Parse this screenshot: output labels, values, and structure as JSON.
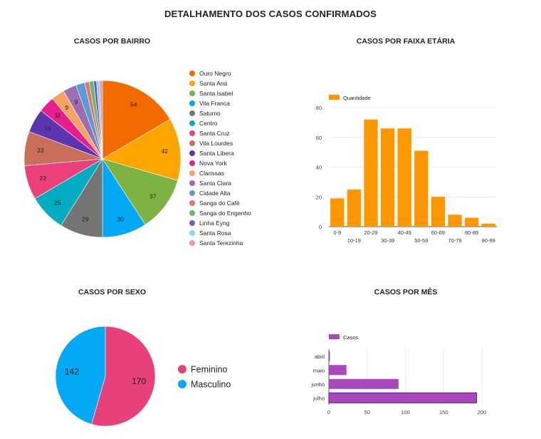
{
  "page": {
    "title": "DETALHAMENTO DOS CASOS CONFIRMADOS"
  },
  "chart_data": [
    {
      "type": "pie",
      "title": "CASOS POR BAIRRO",
      "categories": [
        "Ouro Negro",
        "Santa Ana",
        "Santa Isabel",
        "Vila Franca",
        "Saturno",
        "Centro",
        "Santa Cruz",
        "Vila Lourdes",
        "Santa Líbera",
        "Nova York",
        "Clarissas",
        "Santa Clara",
        "Cidade Alta",
        "Sanga do Café",
        "Sanga do Engenho",
        "Linha Eyng",
        "Santa Rosa",
        "Santa Terezinha"
      ],
      "values": [
        54,
        42,
        37,
        30,
        29,
        25,
        23,
        23,
        16,
        11,
        9,
        9,
        6,
        3,
        3,
        2,
        2,
        2
      ],
      "colors": [
        "#f26b00",
        "#ffa500",
        "#7cb342",
        "#03a9f4",
        "#757575",
        "#00acc1",
        "#ec407a",
        "#c96e5a",
        "#5e35b1",
        "#e91e8c",
        "#f4a460",
        "#9c6db1",
        "#5b9bd5",
        "#e57373",
        "#66bb6a",
        "#7e57c2",
        "#81d4fa",
        "#f48fb1"
      ],
      "legend": "right"
    },
    {
      "type": "bar",
      "title": "CASOS POR FAIXA ETÁRIA",
      "categories": [
        "0-9",
        "10-19",
        "20-29",
        "30-39",
        "40-49",
        "50-59",
        "60-69",
        "70-79",
        "80-89",
        "90-99"
      ],
      "series": [
        {
          "name": "Quantidade",
          "values": [
            19,
            25,
            72,
            66,
            66,
            51,
            20,
            8,
            6,
            2
          ],
          "color": "#ff9800"
        }
      ],
      "ylim": [
        0,
        80
      ],
      "yticks": [
        0,
        20,
        40,
        60,
        80
      ],
      "legend": "top-left"
    },
    {
      "type": "pie",
      "title": "CASOS POR SEXO",
      "categories": [
        "Feminino",
        "Masculino"
      ],
      "values": [
        170,
        142
      ],
      "colors": [
        "#e8407a",
        "#03a9f4"
      ],
      "legend": "right"
    },
    {
      "type": "bar",
      "orientation": "horizontal",
      "title": "CASOS POR MÊS",
      "categories": [
        "abril",
        "maio",
        "junho",
        "julho"
      ],
      "series": [
        {
          "name": "Casos",
          "values": [
            1,
            23,
            91,
            193
          ],
          "color": "#ab47bc"
        }
      ],
      "xlim": [
        0,
        200
      ],
      "xticks": [
        0,
        50,
        100,
        150,
        200
      ],
      "legend": "top-left"
    }
  ]
}
